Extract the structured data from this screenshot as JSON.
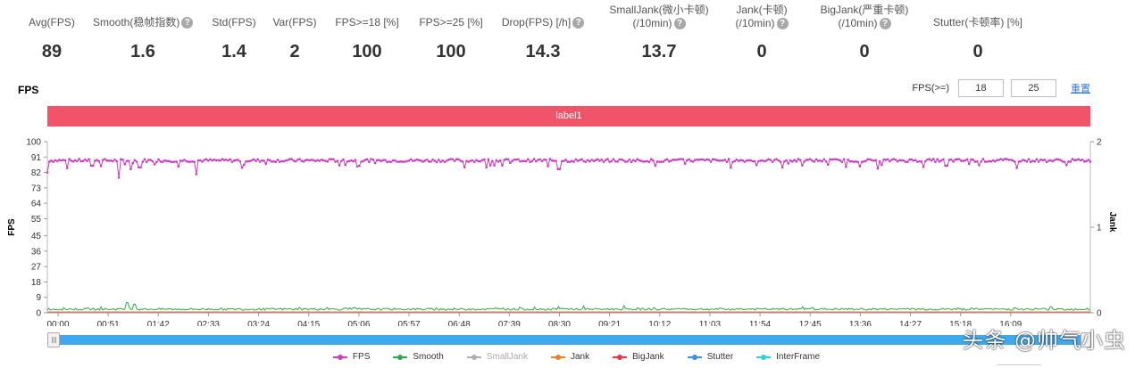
{
  "stats": [
    {
      "label": "Avg(FPS)",
      "value": "89",
      "help": false
    },
    {
      "label": "Smooth(稳帧指数)",
      "value": "1.6",
      "help": true
    },
    {
      "label": "Std(FPS)",
      "value": "1.4",
      "help": false
    },
    {
      "label": "Var(FPS)",
      "value": "2",
      "help": false
    },
    {
      "label": "FPS>=18 [%]",
      "value": "100",
      "help": false
    },
    {
      "label": "FPS>=25 [%]",
      "value": "100",
      "help": false
    },
    {
      "label": "Drop(FPS) [/h]",
      "value": "14.3",
      "help": true
    },
    {
      "label": "SmallJank(微小卡顿)",
      "label2": "(/10min)",
      "value": "13.7",
      "help": true
    },
    {
      "label": "Jank(卡顿)",
      "label2": "(/10min)",
      "value": "0",
      "help": true
    },
    {
      "label": "BigJank(严重卡顿)",
      "label2": "(/10min)",
      "value": "0",
      "help": true
    },
    {
      "label": "Stutter(卡顿率) [%]",
      "value": "0",
      "help": false
    }
  ],
  "chart_title": "FPS",
  "threshold": {
    "label": "FPS(>=)",
    "value1": "18",
    "value2": "25",
    "reset": "重置"
  },
  "band_label": "label1",
  "watermark": "头条 @帅气小虫",
  "help_glyph": "?",
  "chart_data": {
    "type": "line",
    "x_ticks": [
      "00:00",
      "00:51",
      "01:42",
      "02:33",
      "03:24",
      "04:15",
      "05:06",
      "05:57",
      "06:48",
      "07:39",
      "08:30",
      "09:21",
      "10:12",
      "11:03",
      "11:54",
      "12:45",
      "13:36",
      "14:27",
      "15:18",
      "16:09"
    ],
    "y_ticks": [
      "0",
      "9",
      "18",
      "27",
      "36",
      "45",
      "55",
      "64",
      "73",
      "82",
      "91",
      "100"
    ],
    "y_label": "FPS",
    "y_range": [
      0,
      100
    ],
    "y2_ticks": [
      "0",
      "1",
      "2"
    ],
    "y2_label": "Jank",
    "y2_range": [
      0,
      2
    ],
    "duration_seconds": 1050,
    "series": [
      {
        "name": "FPS",
        "color": "#c83fc0",
        "baseline": 89,
        "dips": [
          [
            0,
            82
          ],
          [
            45,
            86
          ],
          [
            72,
            79
          ],
          [
            84,
            84
          ],
          [
            93,
            85
          ],
          [
            150,
            81
          ],
          [
            420,
            85
          ],
          [
            515,
            84
          ],
          [
            612,
            86
          ],
          [
            740,
            85
          ],
          [
            905,
            86
          ],
          [
            1080,
            84
          ],
          [
            1212,
            83
          ],
          [
            1245,
            85
          ],
          [
            1265,
            75
          ]
        ]
      },
      {
        "name": "Smooth",
        "color": "#2faa4f",
        "baseline": 1.5,
        "peaks": [
          [
            80,
            6
          ],
          [
            88,
            5
          ],
          [
            310,
            3
          ],
          [
            540,
            4
          ],
          [
            770,
            3
          ],
          [
            1010,
            3.5
          ],
          [
            1115,
            2.5
          ]
        ]
      },
      {
        "name": "SmallJank",
        "color": "#b0b0b0"
      },
      {
        "name": "Jank",
        "color": "#f07f2c"
      },
      {
        "name": "BigJank",
        "color": "#e0393e"
      },
      {
        "name": "Stutter",
        "color": "#3d8fe8"
      },
      {
        "name": "InterFrame",
        "color": "#2ad0d4"
      }
    ]
  }
}
